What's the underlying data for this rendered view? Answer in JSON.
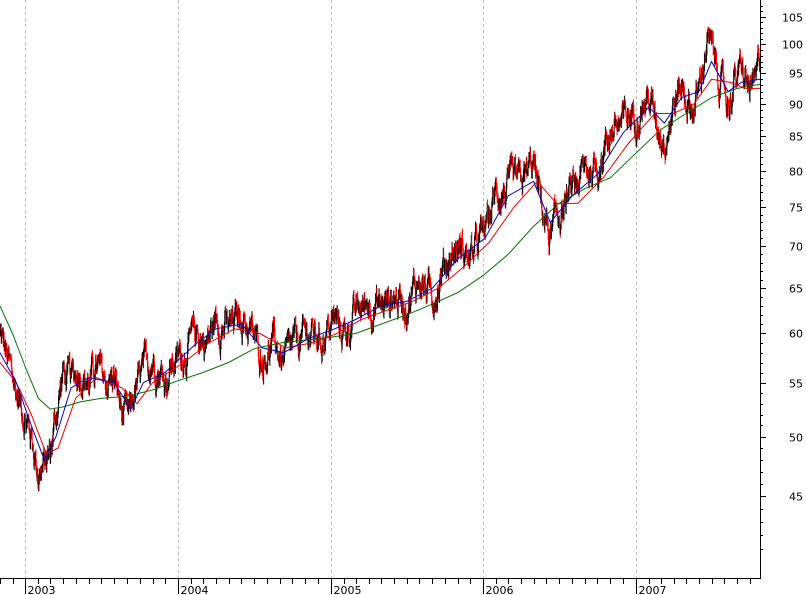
{
  "chart_data": {
    "type": "line",
    "title": "",
    "xlabel": "",
    "ylabel": "",
    "y_scale": "log",
    "ylim": [
      40.5,
      107
    ],
    "xlim": [
      "2002-11-01",
      "2007-10-25"
    ],
    "y_ticks": [
      45,
      50,
      55,
      60,
      65,
      70,
      75,
      80,
      85,
      90,
      95,
      100,
      105
    ],
    "x_tick_labels": [
      {
        "date": "2003-01-01",
        "label": "2003"
      },
      {
        "date": "2004-01-01",
        "label": "2004"
      },
      {
        "date": "2005-01-01",
        "label": "2005"
      },
      {
        "date": "2006-01-01",
        "label": "2006"
      },
      {
        "date": "2007-01-01",
        "label": "2007"
      }
    ],
    "grid": {
      "vertical_dashed_at_years": true,
      "horizontal": false
    },
    "legend": "none",
    "colors": {
      "price": "#000000",
      "down_bars": "#ff0000",
      "ma_short": "#0000cc",
      "ma_medium": "#ee0000",
      "ma_long": "#007700",
      "grid": "#bbbbbb"
    },
    "series": [
      {
        "role": "price",
        "points": [
          [
            "2002-11-01",
            60
          ],
          [
            "2002-11-20",
            57
          ],
          [
            "2002-12-10",
            54
          ],
          [
            "2002-12-30",
            52
          ],
          [
            "2003-01-15",
            50
          ],
          [
            "2003-02-01",
            47
          ],
          [
            "2003-02-15",
            47.5
          ],
          [
            "2003-03-01",
            48.5
          ],
          [
            "2003-03-15",
            52
          ],
          [
            "2003-04-01",
            56
          ],
          [
            "2003-04-20",
            55
          ],
          [
            "2003-05-10",
            56.5
          ],
          [
            "2003-06-01",
            55
          ],
          [
            "2003-06-20",
            56.5
          ],
          [
            "2003-07-10",
            55
          ],
          [
            "2003-08-01",
            55.5
          ],
          [
            "2003-08-20",
            52
          ],
          [
            "2003-09-05",
            51.5
          ],
          [
            "2003-09-20",
            54
          ],
          [
            "2003-10-10",
            56
          ],
          [
            "2003-11-01",
            57.5
          ],
          [
            "2003-12-01",
            55.5
          ],
          [
            "2003-12-20",
            57
          ],
          [
            "2004-01-15",
            58
          ],
          [
            "2004-02-15",
            60
          ],
          [
            "2004-03-10",
            59
          ],
          [
            "2004-04-01",
            61.5
          ],
          [
            "2004-05-01",
            60.5
          ],
          [
            "2004-06-01",
            62
          ],
          [
            "2004-07-01",
            59.5
          ],
          [
            "2004-07-20",
            57.5
          ],
          [
            "2004-08-15",
            59
          ],
          [
            "2004-09-10",
            57
          ],
          [
            "2004-10-10",
            59
          ],
          [
            "2004-11-10",
            60
          ],
          [
            "2004-12-10",
            59.5
          ],
          [
            "2005-01-10",
            61.5
          ],
          [
            "2005-02-01",
            60
          ],
          [
            "2005-03-01",
            62
          ],
          [
            "2005-04-01",
            63.5
          ],
          [
            "2005-05-01",
            63
          ],
          [
            "2005-06-01",
            64
          ],
          [
            "2005-07-01",
            63.5
          ],
          [
            "2005-08-01",
            66
          ],
          [
            "2005-09-01",
            64
          ],
          [
            "2005-10-01",
            68
          ],
          [
            "2005-11-01",
            70
          ],
          [
            "2005-12-01",
            68.5
          ],
          [
            "2006-01-05",
            72
          ],
          [
            "2006-02-01",
            77
          ],
          [
            "2006-03-01",
            77.5
          ],
          [
            "2006-04-01",
            78
          ],
          [
            "2006-05-01",
            81
          ],
          [
            "2006-05-20",
            75
          ],
          [
            "2006-06-10",
            71
          ],
          [
            "2006-07-01",
            74
          ],
          [
            "2006-08-01",
            77
          ],
          [
            "2006-09-01",
            80
          ],
          [
            "2006-10-01",
            80.5
          ],
          [
            "2006-11-01",
            86
          ],
          [
            "2006-12-01",
            87
          ],
          [
            "2007-01-01",
            89
          ],
          [
            "2007-02-01",
            91
          ],
          [
            "2007-02-20",
            87
          ],
          [
            "2007-03-10",
            85
          ],
          [
            "2007-04-01",
            90
          ],
          [
            "2007-04-20",
            93
          ],
          [
            "2007-05-15",
            89
          ],
          [
            "2007-06-01",
            92
          ],
          [
            "2007-06-20",
            101
          ],
          [
            "2007-07-10",
            97
          ],
          [
            "2007-07-25",
            93
          ],
          [
            "2007-08-10",
            90
          ],
          [
            "2007-08-25",
            94
          ],
          [
            "2007-09-10",
            95
          ],
          [
            "2007-10-01",
            92
          ],
          [
            "2007-10-15",
            93
          ],
          [
            "2007-10-25",
            98
          ]
        ]
      },
      {
        "role": "ma_short",
        "points": [
          [
            "2002-11-01",
            58
          ],
          [
            "2002-12-10",
            55
          ],
          [
            "2003-01-15",
            51
          ],
          [
            "2003-02-15",
            48
          ],
          [
            "2003-03-15",
            50
          ],
          [
            "2003-04-20",
            54.5
          ],
          [
            "2003-06-01",
            55.5
          ],
          [
            "2003-08-01",
            55
          ],
          [
            "2003-09-10",
            52.5
          ],
          [
            "2003-10-10",
            55
          ],
          [
            "2003-12-01",
            56
          ],
          [
            "2004-02-15",
            59
          ],
          [
            "2004-04-01",
            60.5
          ],
          [
            "2004-06-01",
            61
          ],
          [
            "2004-07-20",
            58.5
          ],
          [
            "2004-09-10",
            58
          ],
          [
            "2004-11-10",
            59.5
          ],
          [
            "2005-01-10",
            60.5
          ],
          [
            "2005-03-01",
            61.5
          ],
          [
            "2005-05-01",
            63
          ],
          [
            "2005-07-01",
            63.5
          ],
          [
            "2005-09-01",
            65
          ],
          [
            "2005-11-01",
            68.5
          ],
          [
            "2006-01-05",
            71
          ],
          [
            "2006-03-01",
            76.5
          ],
          [
            "2006-05-01",
            78.5
          ],
          [
            "2006-06-10",
            73
          ],
          [
            "2006-08-01",
            76.5
          ],
          [
            "2006-10-01",
            79.5
          ],
          [
            "2006-12-01",
            85.5
          ],
          [
            "2007-02-01",
            89.5
          ],
          [
            "2007-03-10",
            87
          ],
          [
            "2007-04-20",
            91
          ],
          [
            "2007-06-01",
            92
          ],
          [
            "2007-07-01",
            97
          ],
          [
            "2007-08-10",
            92
          ],
          [
            "2007-09-10",
            93.5
          ],
          [
            "2007-10-25",
            94
          ]
        ]
      },
      {
        "role": "ma_medium",
        "points": [
          [
            "2002-11-01",
            57
          ],
          [
            "2002-12-10",
            55
          ],
          [
            "2003-01-15",
            52
          ],
          [
            "2003-02-20",
            48.5
          ],
          [
            "2003-03-20",
            49
          ],
          [
            "2003-05-01",
            53.5
          ],
          [
            "2003-06-20",
            55.5
          ],
          [
            "2003-08-20",
            54.5
          ],
          [
            "2003-09-25",
            53
          ],
          [
            "2003-11-01",
            55
          ],
          [
            "2004-01-15",
            57
          ],
          [
            "2004-03-15",
            59
          ],
          [
            "2004-05-15",
            60.5
          ],
          [
            "2004-07-15",
            60
          ],
          [
            "2004-09-15",
            58.5
          ],
          [
            "2004-11-15",
            59
          ],
          [
            "2005-01-15",
            60
          ],
          [
            "2005-03-15",
            61.5
          ],
          [
            "2005-05-15",
            62.5
          ],
          [
            "2005-07-15",
            63.5
          ],
          [
            "2005-09-15",
            65
          ],
          [
            "2005-11-15",
            67.5
          ],
          [
            "2006-01-15",
            70.5
          ],
          [
            "2006-03-15",
            75
          ],
          [
            "2006-05-10",
            78.5
          ],
          [
            "2006-06-25",
            75.5
          ],
          [
            "2006-08-15",
            75.5
          ],
          [
            "2006-10-15",
            79
          ],
          [
            "2006-12-15",
            84
          ],
          [
            "2007-02-15",
            88.5
          ],
          [
            "2007-04-01",
            88.5
          ],
          [
            "2007-05-20",
            90
          ],
          [
            "2007-07-01",
            94
          ],
          [
            "2007-08-15",
            93.5
          ],
          [
            "2007-09-20",
            92.5
          ],
          [
            "2007-10-25",
            92.5
          ]
        ]
      },
      {
        "role": "ma_long",
        "points": [
          [
            "2002-11-01",
            63
          ],
          [
            "2002-12-01",
            60
          ],
          [
            "2003-01-01",
            56.5
          ],
          [
            "2003-02-01",
            53.5
          ],
          [
            "2003-03-01",
            52.5
          ],
          [
            "2003-04-01",
            52.7
          ],
          [
            "2003-05-15",
            53.2
          ],
          [
            "2003-07-01",
            53.5
          ],
          [
            "2003-09-01",
            53.7
          ],
          [
            "2003-11-01",
            54.3
          ],
          [
            "2004-01-01",
            55.2
          ],
          [
            "2004-03-01",
            56
          ],
          [
            "2004-05-01",
            57
          ],
          [
            "2004-07-01",
            58.4
          ],
          [
            "2004-09-01",
            59
          ],
          [
            "2004-11-01",
            59.3
          ],
          [
            "2005-01-01",
            59.6
          ],
          [
            "2005-03-01",
            60
          ],
          [
            "2005-05-01",
            61
          ],
          [
            "2005-07-01",
            62
          ],
          [
            "2005-09-01",
            63.2
          ],
          [
            "2005-11-01",
            64.5
          ],
          [
            "2006-01-01",
            66.5
          ],
          [
            "2006-03-01",
            69
          ],
          [
            "2006-05-01",
            72.5
          ],
          [
            "2006-07-01",
            75.5
          ],
          [
            "2006-09-01",
            77.5
          ],
          [
            "2006-11-01",
            79
          ],
          [
            "2007-01-01",
            82.5
          ],
          [
            "2007-03-01",
            86
          ],
          [
            "2007-05-01",
            88.5
          ],
          [
            "2007-07-01",
            91
          ],
          [
            "2007-09-01",
            92.5
          ],
          [
            "2007-10-25",
            93.2
          ]
        ]
      }
    ]
  }
}
